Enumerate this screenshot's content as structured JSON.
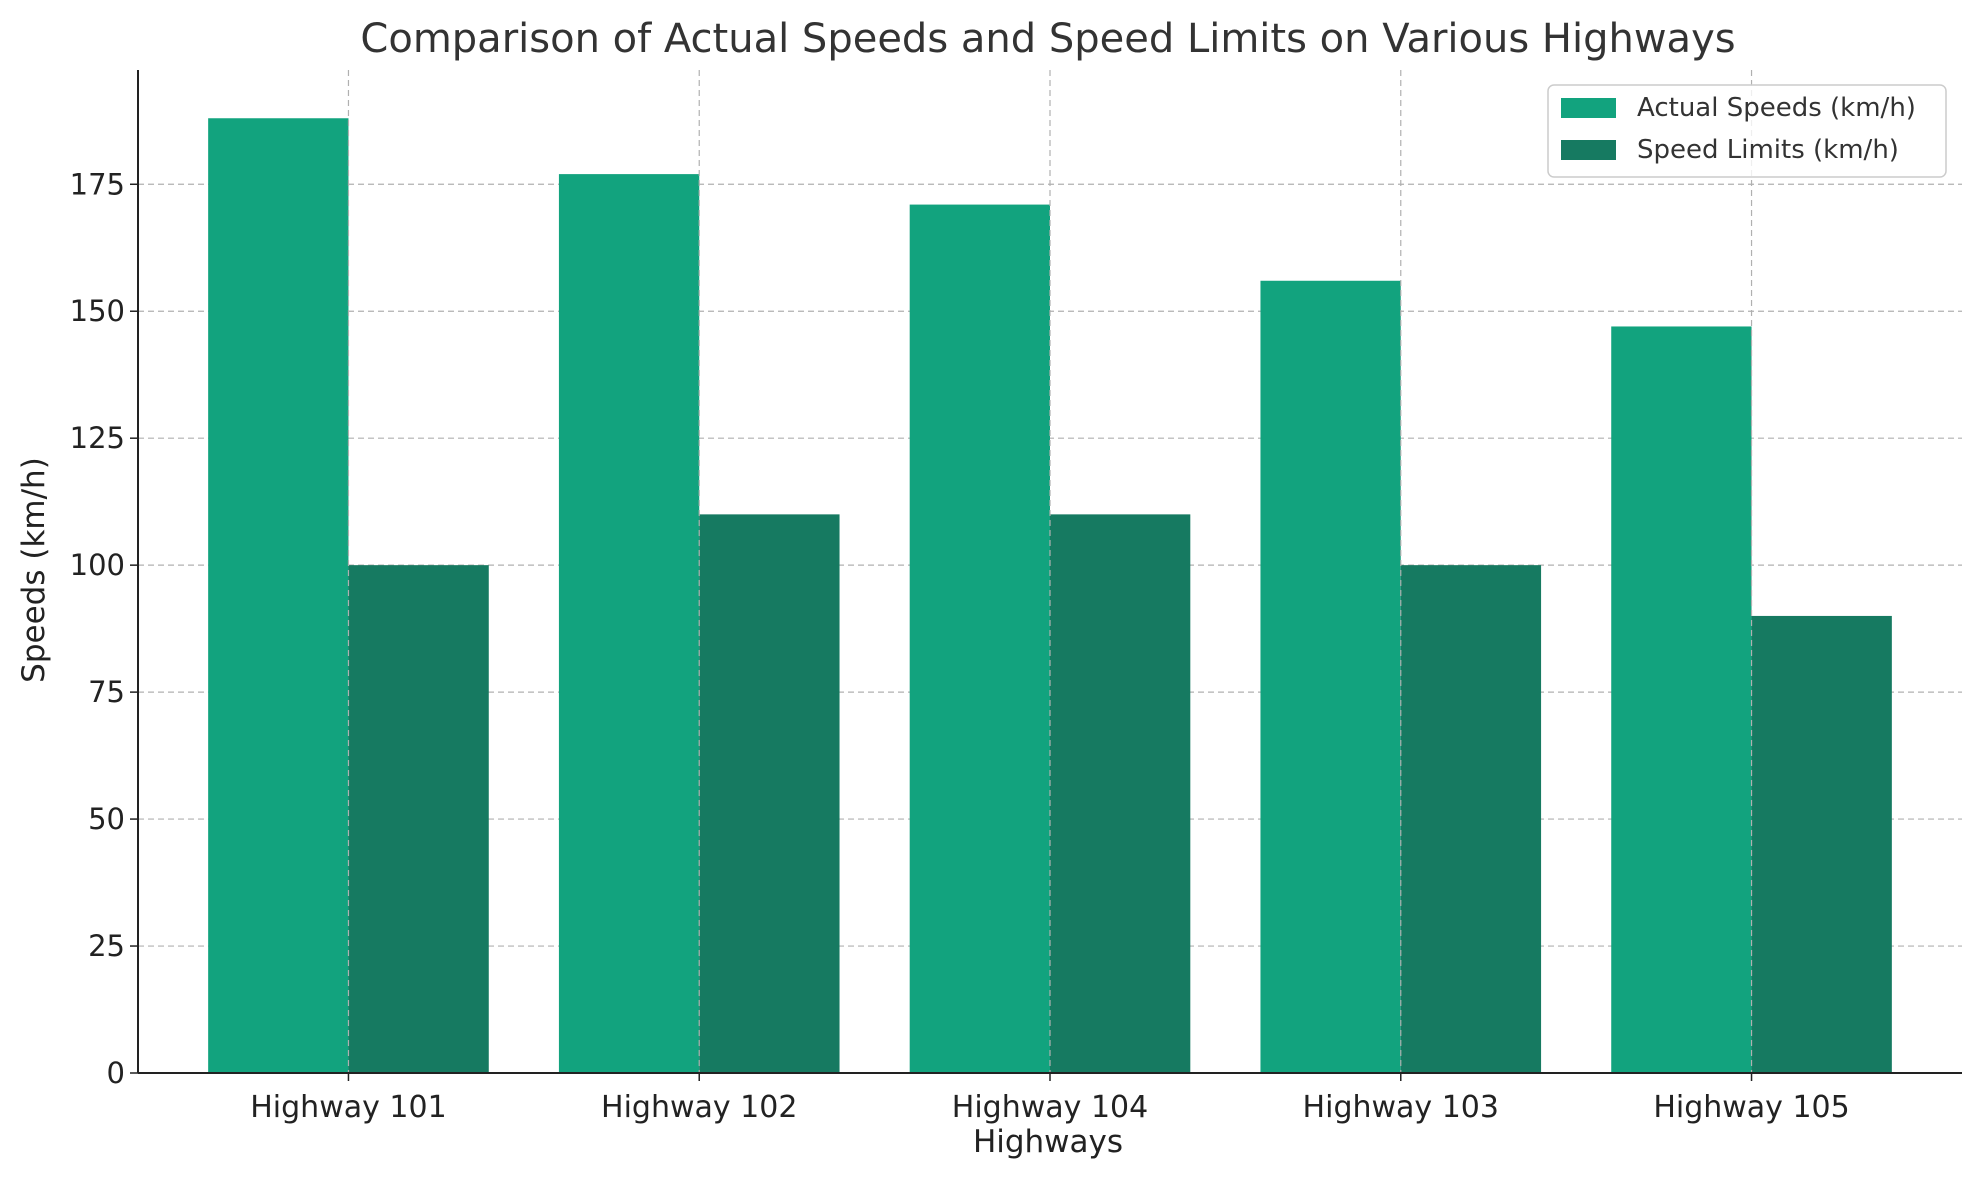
{
  "chart_data": {
    "type": "bar",
    "title": "Comparison of Actual Speeds and Speed Limits on Various Highways",
    "xlabel": "Highways",
    "ylabel": "Speeds (km/h)",
    "categories": [
      "Highway 101",
      "Highway 102",
      "Highway 104",
      "Highway 103",
      "Highway 105"
    ],
    "series": [
      {
        "name": "Actual Speeds (km/h)",
        "values": [
          188,
          177,
          171,
          156,
          147
        ],
        "color": "#12a37e"
      },
      {
        "name": "Speed Limits (km/h)",
        "values": [
          100,
          110,
          110,
          100,
          90
        ],
        "color": "#167a61"
      }
    ],
    "ylim": [
      0,
      197.5
    ],
    "yticks": [
      0,
      25,
      50,
      75,
      100,
      125,
      150,
      175
    ],
    "grid": true,
    "legend_position": "top-right"
  }
}
